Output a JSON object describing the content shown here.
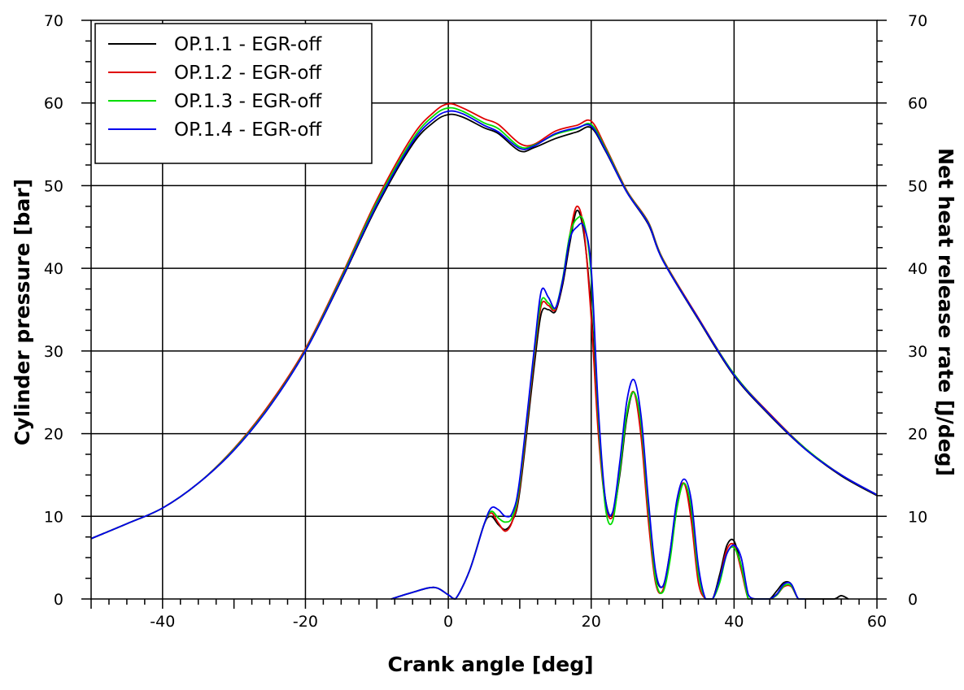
{
  "chart_data": {
    "type": "line",
    "xlabel": "Crank angle [deg]",
    "ylabel": "Cylinder pressure [bar]",
    "y2label": "Net heat release rate [J/deg]",
    "xlim": [
      -50,
      60
    ],
    "ylim": [
      0,
      70
    ],
    "y2lim": [
      0,
      70
    ],
    "x_ticks": [
      "-40",
      "-20",
      "0",
      "20",
      "40",
      "60"
    ],
    "y_ticks": [
      "0",
      "10",
      "20",
      "30",
      "40",
      "50",
      "60",
      "70"
    ],
    "y2_ticks": [
      "0",
      "10",
      "20",
      "30",
      "40",
      "50",
      "60",
      "70"
    ],
    "grid": true,
    "legend_position": "top-left",
    "legend": [
      "OP.1.1 - EGR-off",
      "OP.1.2 - EGR-off",
      "OP.1.3 - EGR-off",
      "OP.1.4 - EGR-off"
    ],
    "colors": [
      "#000000",
      "#e00000",
      "#00dd00",
      "#0000ee"
    ],
    "series": [
      {
        "name": "OP.1.1 - EGR-off",
        "pressure": {
          "x": [
            -50,
            -45,
            -40,
            -35,
            -30,
            -25,
            -20,
            -15,
            -10,
            -5,
            -2,
            0,
            2,
            5,
            7,
            10,
            12,
            15,
            18,
            20,
            22,
            25,
            28,
            30,
            35,
            40,
            45,
            50,
            55,
            60
          ],
          "y": [
            7.3,
            9.1,
            11.0,
            14.0,
            18.0,
            23.3,
            30.0,
            38.5,
            47.5,
            55.0,
            57.7,
            58.6,
            58.3,
            57.0,
            56.3,
            54.2,
            54.6,
            55.7,
            56.5,
            57.0,
            54.2,
            49.2,
            45.3,
            41.0,
            33.8,
            27.0,
            22.2,
            18.1,
            14.9,
            12.5
          ]
        },
        "heat_release": {
          "x": [
            -8,
            -5,
            -2,
            0,
            1,
            3,
            5,
            6,
            7,
            8,
            9,
            10,
            12,
            13,
            14,
            15,
            16,
            17,
            18,
            19,
            20,
            21,
            22,
            23,
            24,
            25,
            26,
            27,
            28,
            29,
            30,
            31,
            32,
            33,
            34,
            35,
            36,
            37,
            38,
            39,
            40,
            41,
            42,
            43,
            44,
            45,
            46,
            47,
            48,
            49,
            50,
            52,
            54,
            55,
            56
          ],
          "y": [
            0,
            0.8,
            1.4,
            0.5,
            0,
            3.5,
            9,
            10,
            9,
            8.4,
            9.5,
            13,
            28,
            34.5,
            35,
            34.8,
            38,
            43,
            47,
            44,
            35,
            21,
            12,
            10.2,
            15,
            22,
            25,
            20,
            10,
            3,
            1.5,
            5,
            11,
            14,
            10,
            3,
            0,
            0,
            3,
            6.5,
            7,
            4,
            0,
            0,
            0,
            0,
            1,
            2,
            1.8,
            0,
            0,
            0,
            0,
            0.4,
            0
          ]
        }
      },
      {
        "name": "OP.1.2 - EGR-off",
        "pressure": {
          "x": [
            -50,
            -45,
            -40,
            -35,
            -30,
            -25,
            -20,
            -15,
            -10,
            -5,
            -2,
            0,
            2,
            5,
            7,
            10,
            12,
            15,
            18,
            20,
            22,
            25,
            28,
            30,
            35,
            40,
            45,
            50,
            55,
            60
          ],
          "y": [
            7.3,
            9.1,
            11.0,
            14.0,
            18.2,
            23.6,
            30.3,
            39.0,
            48.3,
            56.0,
            58.9,
            59.9,
            59.4,
            58.1,
            57.4,
            55.1,
            55.0,
            56.6,
            57.3,
            57.8,
            54.7,
            49.4,
            45.6,
            41.2,
            34.0,
            27.2,
            22.4,
            18.2,
            15.0,
            12.6
          ]
        },
        "heat_release": {
          "x": [
            -8,
            -5,
            -2,
            0,
            1,
            3,
            5,
            6,
            7,
            8,
            9,
            10,
            12,
            13,
            14,
            15,
            16,
            17,
            18,
            19,
            20,
            21,
            22,
            23,
            24,
            25,
            26,
            27,
            28,
            29,
            30,
            31,
            32,
            33,
            34,
            35,
            36,
            37,
            38,
            39,
            40,
            41,
            42,
            43,
            44,
            45,
            46,
            47,
            48,
            49,
            50
          ],
          "y": [
            0,
            0.8,
            1.4,
            0.5,
            0,
            3.5,
            9,
            10.4,
            9.2,
            8.2,
            9.5,
            13.5,
            29,
            35.5,
            35.5,
            35,
            38.5,
            44,
            47.5,
            44.5,
            34,
            20,
            11.5,
            10,
            15.5,
            22.5,
            25,
            19.5,
            9.5,
            2,
            1,
            5.5,
            11.5,
            14,
            9.5,
            2,
            0,
            0,
            2.5,
            6,
            6.5,
            3.5,
            0,
            0,
            0,
            0,
            0.5,
            1.5,
            1.5,
            0,
            0
          ]
        }
      },
      {
        "name": "OP.1.3 - EGR-off",
        "pressure": {
          "x": [
            -50,
            -45,
            -40,
            -35,
            -30,
            -25,
            -20,
            -15,
            -10,
            -5,
            -2,
            0,
            2,
            5,
            7,
            10,
            12,
            15,
            18,
            20,
            22,
            25,
            28,
            30,
            35,
            40,
            45,
            50,
            55,
            60
          ],
          "y": [
            7.3,
            9.1,
            11.0,
            14.0,
            18.1,
            23.4,
            30.1,
            38.8,
            48.0,
            55.6,
            58.5,
            59.4,
            59.0,
            57.6,
            56.9,
            54.7,
            54.9,
            56.2,
            56.9,
            57.4,
            54.5,
            49.3,
            45.5,
            41.1,
            33.9,
            27.2,
            22.3,
            18.2,
            15.0,
            12.6
          ]
        },
        "heat_release": {
          "x": [
            -8,
            -5,
            -2,
            0,
            1,
            3,
            5,
            6,
            7,
            8,
            9,
            10,
            12,
            13,
            14,
            15,
            16,
            17,
            18,
            19,
            20,
            21,
            22,
            23,
            24,
            25,
            26,
            27,
            28,
            29,
            30,
            31,
            32,
            33,
            34,
            35,
            36,
            37,
            38,
            39,
            40,
            41,
            42,
            43,
            44,
            45,
            46,
            47,
            48,
            49,
            50
          ],
          "y": [
            0,
            0.8,
            1.4,
            0.5,
            0,
            3.5,
            9,
            10.6,
            9.8,
            9.3,
            10,
            14,
            29.5,
            36,
            35.8,
            35.2,
            38.7,
            44,
            46,
            45.5,
            39,
            22,
            11,
            9.4,
            15.5,
            22.5,
            25,
            21,
            11,
            2.5,
            0.8,
            4.5,
            11,
            14,
            11,
            3,
            0,
            0,
            2,
            5.5,
            6.2,
            4,
            0,
            0,
            0,
            0,
            0.5,
            1.6,
            1.6,
            0,
            0
          ]
        }
      },
      {
        "name": "OP.1.4 - EGR-off",
        "pressure": {
          "x": [
            -50,
            -45,
            -40,
            -35,
            -30,
            -25,
            -20,
            -15,
            -10,
            -5,
            -2,
            0,
            2,
            5,
            7,
            10,
            12,
            15,
            18,
            20,
            22,
            25,
            28,
            30,
            35,
            40,
            45,
            50,
            55,
            60
          ],
          "y": [
            7.3,
            9.1,
            11.0,
            14.0,
            18.0,
            23.3,
            30.0,
            38.6,
            47.7,
            55.3,
            58.1,
            59.0,
            58.7,
            57.3,
            56.5,
            54.5,
            54.8,
            56.3,
            57.0,
            57.2,
            54.3,
            49.2,
            45.4,
            41.0,
            33.9,
            27.1,
            22.3,
            18.1,
            15.0,
            12.6
          ]
        },
        "heat_release": {
          "x": [
            -8,
            -5,
            -2,
            0,
            1,
            3,
            5,
            6,
            7,
            8,
            9,
            10,
            12,
            13,
            14,
            15,
            16,
            17,
            18,
            19,
            20,
            21,
            22,
            23,
            24,
            25,
            26,
            27,
            28,
            29,
            30,
            31,
            32,
            33,
            34,
            35,
            36,
            37,
            38,
            39,
            40,
            41,
            42,
            43,
            44,
            45,
            46,
            47,
            48,
            49,
            50
          ],
          "y": [
            0,
            0.8,
            1.4,
            0.5,
            0,
            3.5,
            9,
            11,
            10.8,
            10,
            10.5,
            14.5,
            30,
            37.2,
            36.5,
            35.2,
            38.5,
            43.5,
            45,
            45,
            40,
            23,
            12,
            10.5,
            16.5,
            24,
            26.5,
            22,
            12,
            3.5,
            1.5,
            5.5,
            12,
            14.5,
            12,
            4,
            0,
            0,
            2.5,
            5.5,
            6.5,
            5,
            0.5,
            0,
            0,
            0,
            0.6,
            1.8,
            1.8,
            0,
            0
          ]
        }
      }
    ]
  }
}
